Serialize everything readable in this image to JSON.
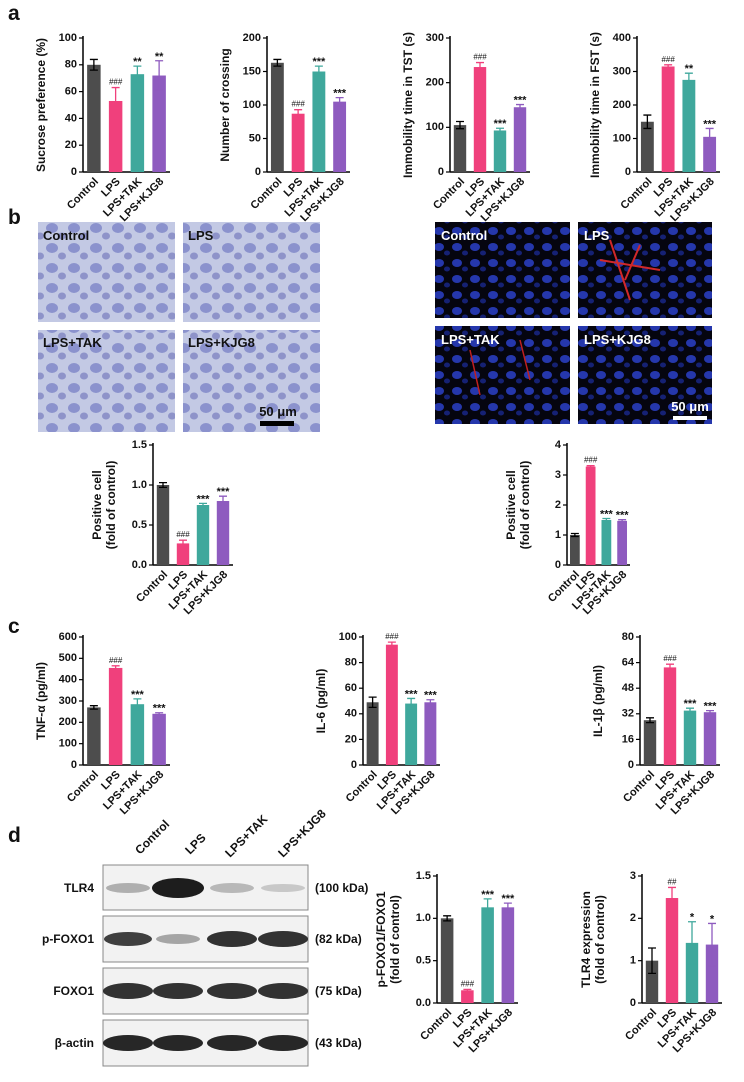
{
  "panel_labels": [
    "a",
    "b",
    "c",
    "d"
  ],
  "nissl": {
    "labels": [
      "Control",
      "LPS",
      "LPS+TAK",
      "LPS+KJG8"
    ],
    "scale": "50 μm"
  },
  "immunofluorescence": {
    "labels": [
      "Control",
      "LPS",
      "LPS+TAK",
      "LPS+KJG8"
    ],
    "scale": "50 μm"
  },
  "blot": {
    "lanes": [
      "Control",
      "LPS",
      "LPS+TAK",
      "LPS+KJG8"
    ],
    "rows": [
      {
        "label": "TLR4",
        "size": "(100 kDa)"
      },
      {
        "label": "p-FOXO1",
        "size": "(82 kDa)"
      },
      {
        "label": "FOXO1",
        "size": "(75 kDa)"
      },
      {
        "label": "β-actin",
        "size": "(43 kDa)"
      }
    ]
  },
  "chart_data": [
    {
      "type": "bar",
      "y_label": [
        "Sucrose preference (%)"
      ],
      "categories": [
        "Control",
        "LPS",
        "LPS+TAK",
        "LPS+KJG8"
      ],
      "values": [
        80,
        53,
        73,
        72
      ],
      "errors": [
        4,
        10,
        6,
        11
      ],
      "annotations": [
        null,
        "###",
        "**",
        "**"
      ],
      "colors": [
        "#4d4d4d",
        "#f0407c",
        "#3fa89c",
        "#8e5bbf"
      ],
      "ylim": [
        0,
        100
      ],
      "yticks": [
        0,
        20,
        40,
        60,
        80,
        100
      ]
    },
    {
      "type": "bar",
      "y_label": [
        "Number of crossing"
      ],
      "categories": [
        "Control",
        "LPS",
        "LPS+TAK",
        "LPS+KJG8"
      ],
      "values": [
        163,
        87,
        150,
        105
      ],
      "errors": [
        5,
        6,
        8,
        6
      ],
      "annotations": [
        null,
        "###",
        "***",
        "***"
      ],
      "colors": [
        "#4d4d4d",
        "#f0407c",
        "#3fa89c",
        "#8e5bbf"
      ],
      "ylim": [
        0,
        200
      ],
      "yticks": [
        0,
        50,
        100,
        150,
        200
      ]
    },
    {
      "type": "bar",
      "y_label": [
        "Immobility time in TST (s)"
      ],
      "categories": [
        "Control",
        "LPS",
        "LPS+TAK",
        "LPS+KJG8"
      ],
      "values": [
        105,
        235,
        93,
        145
      ],
      "errors": [
        8,
        10,
        5,
        6
      ],
      "annotations": [
        null,
        "###",
        "***",
        "***"
      ],
      "colors": [
        "#4d4d4d",
        "#f0407c",
        "#3fa89c",
        "#8e5bbf"
      ],
      "ylim": [
        0,
        300
      ],
      "yticks": [
        0,
        100,
        200,
        300
      ]
    },
    {
      "type": "bar",
      "y_label": [
        "Immobility time in FST (s)"
      ],
      "categories": [
        "Control",
        "LPS",
        "LPS+TAK",
        "LPS+KJG8"
      ],
      "values": [
        150,
        315,
        275,
        105
      ],
      "errors": [
        20,
        5,
        20,
        25
      ],
      "annotations": [
        null,
        "###",
        "**",
        "***"
      ],
      "colors": [
        "#4d4d4d",
        "#f0407c",
        "#3fa89c",
        "#8e5bbf"
      ],
      "ylim": [
        0,
        400
      ],
      "yticks": [
        0,
        100,
        200,
        300,
        400
      ]
    },
    {
      "type": "bar",
      "y_label": [
        "Positive cell",
        "(fold of control)"
      ],
      "categories": [
        "Control",
        "LPS",
        "LPS+TAK",
        "LPS+KJG8"
      ],
      "values": [
        1.0,
        0.27,
        0.75,
        0.8
      ],
      "errors": [
        0.03,
        0.04,
        0.02,
        0.06
      ],
      "annotations": [
        null,
        "###",
        "***",
        "***"
      ],
      "colors": [
        "#4d4d4d",
        "#f0407c",
        "#3fa89c",
        "#8e5bbf"
      ],
      "ylim": [
        0,
        1.5
      ],
      "yticks": [
        {
          "value": 0,
          "label": "0.0"
        },
        0.5,
        {
          "value": 1,
          "label": "1.0"
        },
        1.5
      ]
    },
    {
      "type": "bar",
      "y_label": [
        "Positive cell",
        "(fold of control)"
      ],
      "categories": [
        "Control",
        "LPS",
        "LPS+TAK",
        "LPS+KJG8"
      ],
      "values": [
        1.0,
        3.28,
        1.5,
        1.47
      ],
      "errors": [
        0.05,
        0.03,
        0.05,
        0.04
      ],
      "annotations": [
        null,
        "###",
        "***",
        "***"
      ],
      "colors": [
        "#4d4d4d",
        "#f0407c",
        "#3fa89c",
        "#8e5bbf"
      ],
      "ylim": [
        0,
        4
      ],
      "yticks": [
        0,
        1,
        2,
        3,
        4
      ]
    },
    {
      "type": "bar",
      "y_label": [
        "TNF-α (pg/ml)"
      ],
      "categories": [
        "Control",
        "LPS",
        "LPS+TAK",
        "LPS+KJG8"
      ],
      "values": [
        270,
        455,
        285,
        240
      ],
      "errors": [
        8,
        10,
        25,
        5
      ],
      "annotations": [
        null,
        "###",
        "***",
        "***"
      ],
      "colors": [
        "#4d4d4d",
        "#f0407c",
        "#3fa89c",
        "#8e5bbf"
      ],
      "ylim": [
        0,
        600
      ],
      "yticks": [
        0,
        100,
        200,
        300,
        400,
        500,
        600
      ]
    },
    {
      "type": "bar",
      "y_label": [
        "IL-6 (pg/ml)"
      ],
      "categories": [
        "Control",
        "LPS",
        "LPS+TAK",
        "LPS+KJG8"
      ],
      "values": [
        49,
        94,
        48,
        49
      ],
      "errors": [
        4,
        2,
        4,
        2
      ],
      "annotations": [
        null,
        "###",
        "***",
        "***"
      ],
      "colors": [
        "#4d4d4d",
        "#f0407c",
        "#3fa89c",
        "#8e5bbf"
      ],
      "ylim": [
        0,
        100
      ],
      "yticks": [
        0,
        20,
        40,
        60,
        80,
        100
      ]
    },
    {
      "type": "bar",
      "y_label": [
        "IL-1β (pg/ml)"
      ],
      "categories": [
        "Control",
        "LPS",
        "LPS+TAK",
        "LPS+KJG8"
      ],
      "values": [
        28,
        61,
        34,
        33
      ],
      "errors": [
        1.5,
        2,
        1.5,
        1
      ],
      "annotations": [
        null,
        "###",
        "***",
        "***"
      ],
      "colors": [
        "#4d4d4d",
        "#f0407c",
        "#3fa89c",
        "#8e5bbf"
      ],
      "ylim": [
        0,
        80
      ],
      "yticks": [
        0,
        16,
        32,
        48,
        64,
        80
      ]
    },
    {
      "type": "bar",
      "y_label": [
        "p-FOXO1/FOXO1",
        "(fold of control)"
      ],
      "categories": [
        "Control",
        "LPS",
        "LPS+TAK",
        "LPS+KJG8"
      ],
      "values": [
        1.0,
        0.15,
        1.13,
        1.13
      ],
      "errors": [
        0.03,
        0.01,
        0.1,
        0.05
      ],
      "annotations": [
        null,
        "###",
        "***",
        "***"
      ],
      "colors": [
        "#4d4d4d",
        "#f0407c",
        "#3fa89c",
        "#8e5bbf"
      ],
      "ylim": [
        0,
        1.5
      ],
      "yticks": [
        {
          "value": 0,
          "label": "0.0"
        },
        0.5,
        {
          "value": 1,
          "label": "1.0"
        },
        1.5
      ]
    },
    {
      "type": "bar",
      "y_label": [
        "TLR4 expression",
        "(fold of control)"
      ],
      "categories": [
        "Control",
        "LPS",
        "LPS+TAK",
        "LPS+KJG8"
      ],
      "values": [
        1.0,
        2.48,
        1.42,
        1.38
      ],
      "errors": [
        0.3,
        0.25,
        0.5,
        0.5
      ],
      "annotations": [
        null,
        "##",
        "*",
        "*"
      ],
      "colors": [
        "#4d4d4d",
        "#f0407c",
        "#3fa89c",
        "#8e5bbf"
      ],
      "ylim": [
        0,
        3
      ],
      "yticks": [
        0,
        1,
        2,
        3
      ]
    }
  ]
}
